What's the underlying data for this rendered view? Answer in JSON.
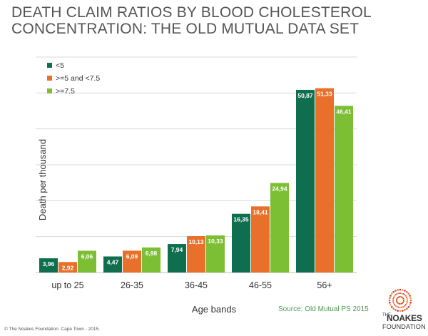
{
  "title_lines": [
    "DEATH CLAIM RATIOS BY BLOOD CHOLESTEROL",
    "CONCENTRATION: THE OLD MUTUAL DATA SET"
  ],
  "source": "Source: Old Mutual PS 2015",
  "footer": "© The Noakes Foundation. Cape Town - 2015.",
  "logo": {
    "the": "THE",
    "name": "NOAKES",
    "sub": "FOUNDATION"
  },
  "colors": {
    "series": [
      "#0f6e4e",
      "#e8702a",
      "#7cbf34"
    ],
    "grid": "#d9d9d9",
    "title": "#555555"
  },
  "chart_data": {
    "type": "bar",
    "title": "DEATH CLAIM RATIOS BY BLOOD CHOLESTEROL CONCENTRATION: THE OLD MUTUAL DATA SET",
    "xlabel": "Age bands",
    "ylabel": "Death per thousand",
    "categories": [
      "up to 25",
      "26-35",
      "36-45",
      "46-55",
      "56+"
    ],
    "series": [
      {
        "name": "<5",
        "values": [
          3.96,
          4.47,
          7.94,
          16.35,
          50.87
        ],
        "labels": [
          "3,96",
          "4,47",
          "7,94",
          "16,35",
          "50,87"
        ]
      },
      {
        "name": ">=5 and <7.5",
        "values": [
          2.92,
          6.09,
          10.13,
          18.41,
          51.33
        ],
        "labels": [
          "2,92",
          "6,09",
          "10,13",
          "18,41",
          "51,33"
        ]
      },
      {
        "name": ">=7.5",
        "values": [
          6.06,
          6.98,
          10.33,
          24.94,
          46.41
        ],
        "labels": [
          "6,06",
          "6,98",
          "10,33",
          "24,94",
          "46,41"
        ]
      }
    ],
    "ylim": [
      0,
      60
    ],
    "grid": true,
    "legend_position": "top-left"
  }
}
